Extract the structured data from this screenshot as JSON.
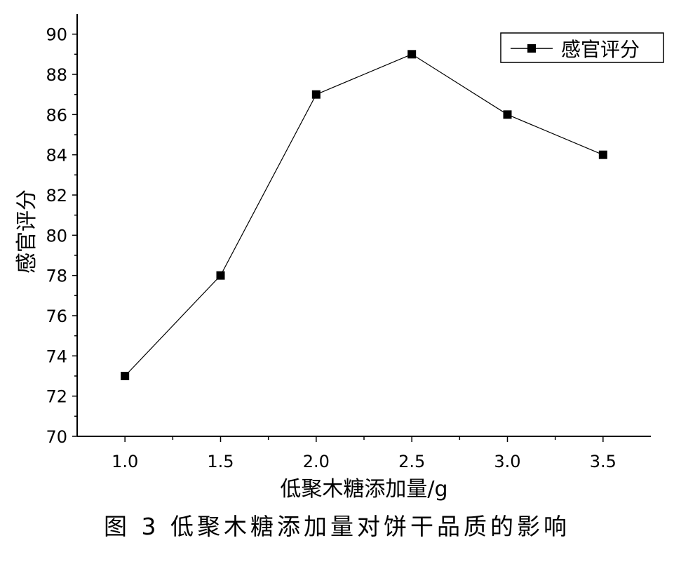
{
  "figure": {
    "caption": "图 3  低聚木糖添加量对饼干品质的影响"
  },
  "chart_data": {
    "type": "line",
    "title": "",
    "xlabel": "低聚木糖添加量/g",
    "ylabel": "感官评分",
    "x": [
      1.0,
      1.5,
      2.0,
      2.5,
      3.0,
      3.5
    ],
    "series": [
      {
        "name": "感官评分",
        "values": [
          73,
          78,
          87,
          89,
          86,
          84
        ]
      }
    ],
    "xlim": [
      0.75,
      3.75
    ],
    "ylim": [
      70,
      91
    ],
    "xticks": [
      "1.0",
      "1.5",
      "2.0",
      "2.5",
      "3.0",
      "3.5"
    ],
    "yticks": [
      "70",
      "72",
      "74",
      "76",
      "78",
      "80",
      "82",
      "84",
      "86",
      "88",
      "90"
    ],
    "grid": false,
    "legend_position": "top-right",
    "marker": "square",
    "line_color": "#000000"
  }
}
